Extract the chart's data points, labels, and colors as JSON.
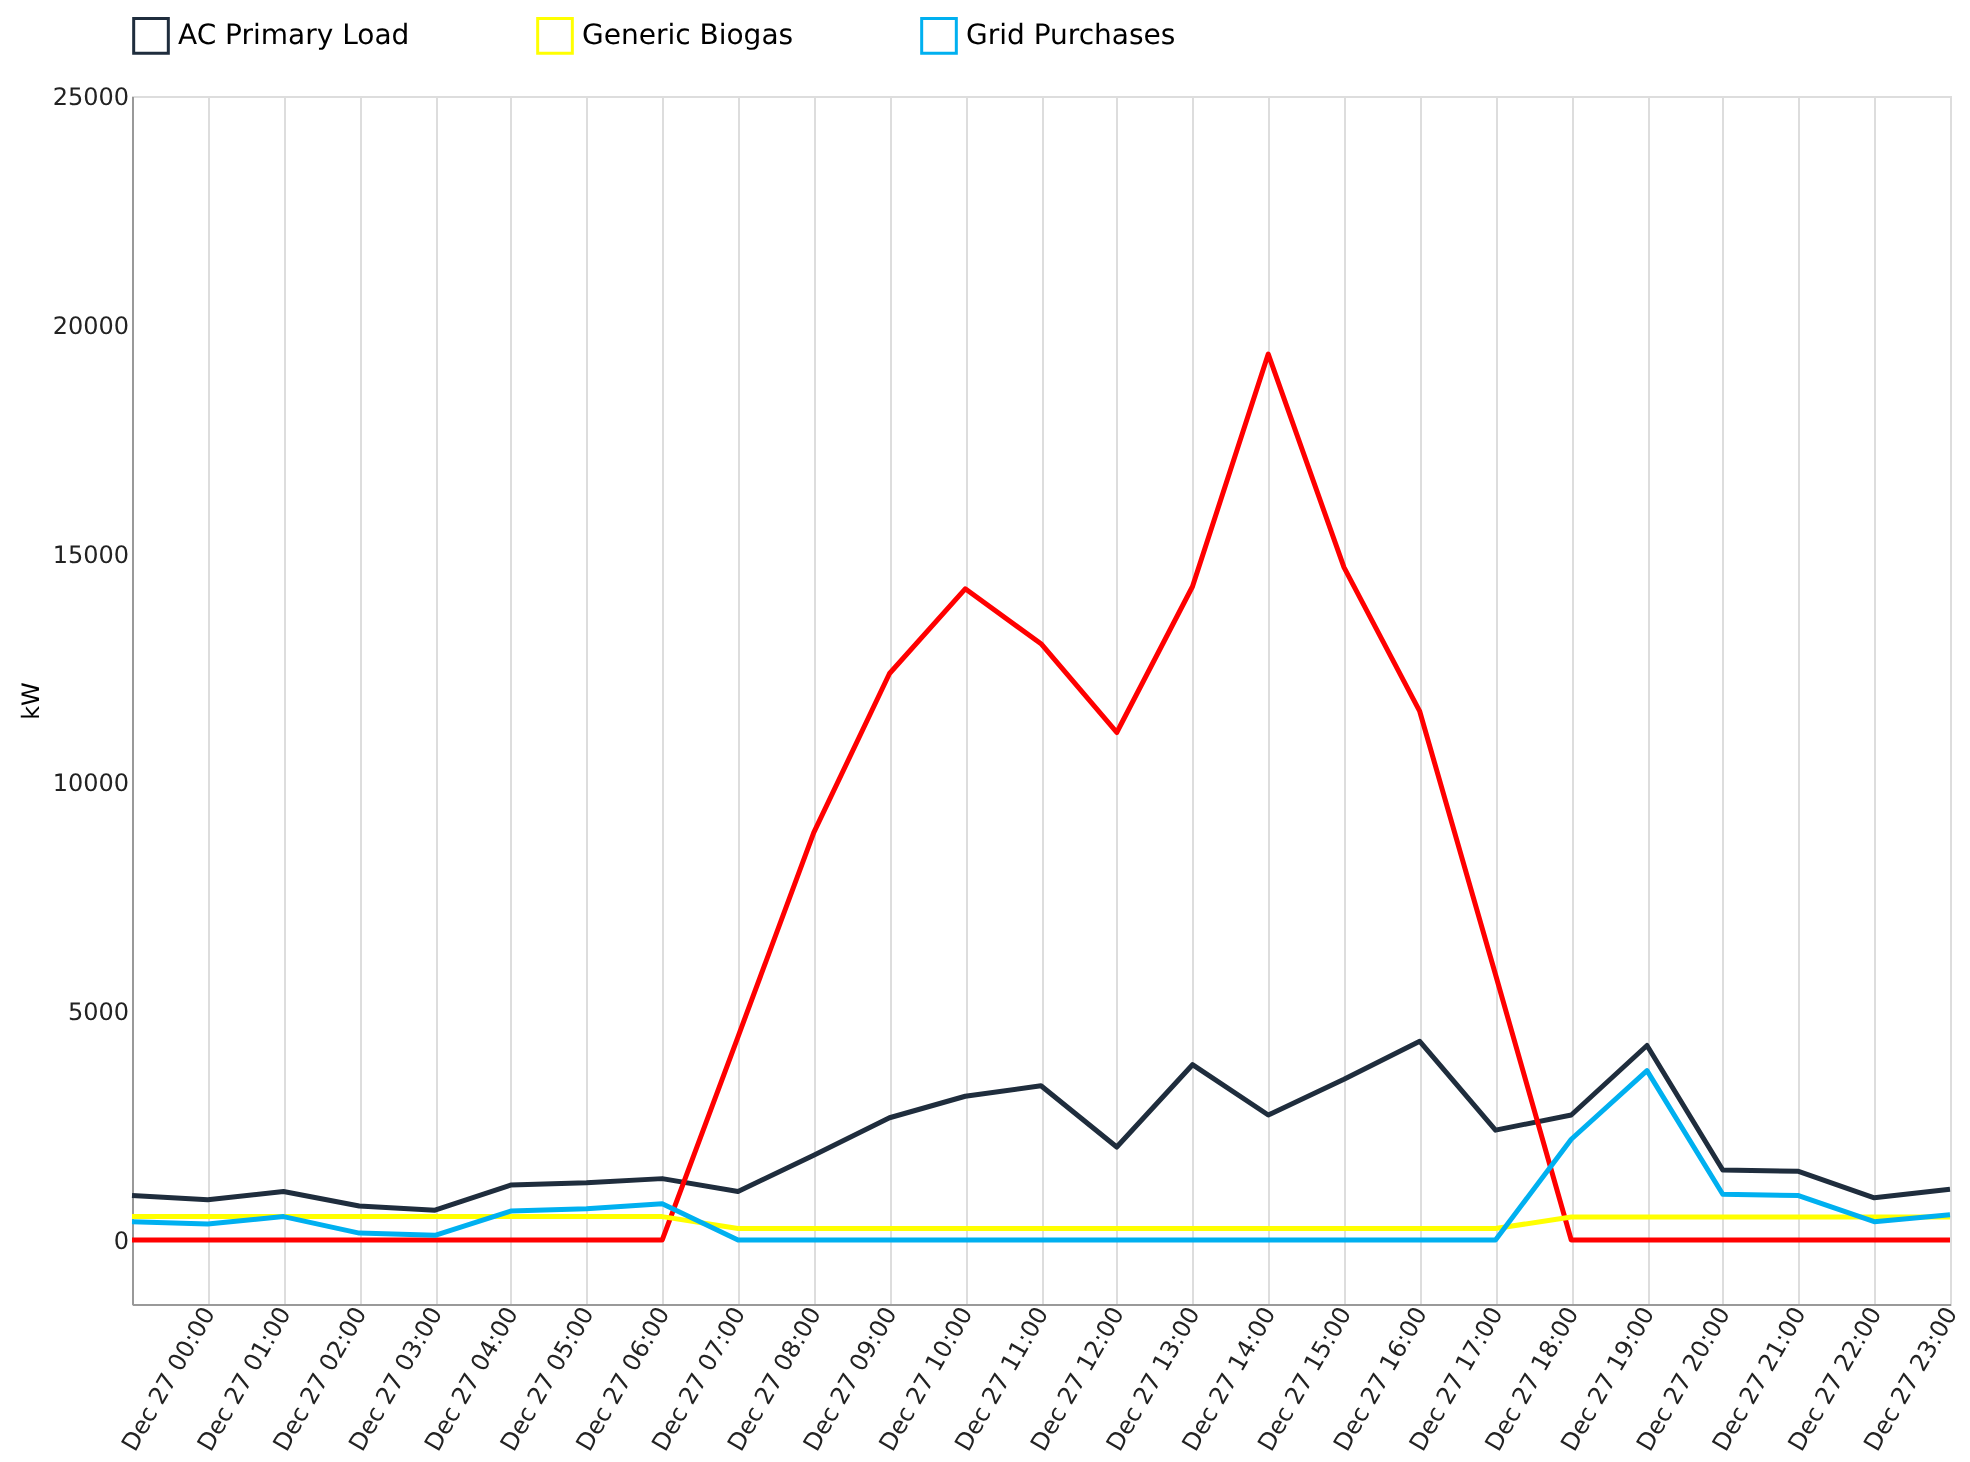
{
  "chart_data": {
    "type": "line",
    "ylabel": "kW",
    "categories": [
      null,
      "Dec 27 00:00",
      "Dec 27 01:00",
      "Dec 27 02:00",
      "Dec 27 03:00",
      "Dec 27 04:00",
      "Dec 27 05:00",
      "Dec 27 06:00",
      "Dec 27 07:00",
      "Dec 27 08:00",
      "Dec 27 09:00",
      "Dec 27 10:00",
      "Dec 27 11:00",
      "Dec 27 12:00",
      "Dec 27 13:00",
      "Dec 27 14:00",
      "Dec 27 15:00",
      "Dec 27 16:00",
      "Dec 27 17:00",
      "Dec 27 18:00",
      "Dec 27 19:00",
      "Dec 27 20:00",
      "Dec 27 21:00",
      "Dec 27 22:00",
      "Dec 27 23:00"
    ],
    "ylim": [
      -1400,
      25000
    ],
    "yticks": [
      0,
      5000,
      10000,
      15000,
      20000,
      25000
    ],
    "grid": "x",
    "legend": "top",
    "marker": "none",
    "line_style": "solid",
    "series": [
      {
        "name": "AC Primary Load",
        "color": "#1f2d3d",
        "values": [
          970,
          880,
          1060,
          740,
          650,
          1200,
          1250,
          1340,
          1060,
          1850,
          2670,
          3140,
          3370,
          2030,
          3830,
          2730,
          3510,
          4340,
          2400,
          2730,
          4250,
          1530,
          1500,
          920,
          1110
        ]
      },
      {
        "color": "#ff0000",
        "values": [
          0,
          0,
          0,
          0,
          0,
          0,
          0,
          0,
          4440,
          8900,
          12380,
          14230,
          13030,
          11090,
          14280,
          19360,
          14700,
          11550,
          5800,
          0,
          0,
          0,
          0,
          0,
          0
        ]
      },
      {
        "name": "Generic Biogas",
        "color": "#ffff00",
        "values": [
          510,
          510,
          510,
          510,
          510,
          510,
          510,
          510,
          250,
          250,
          250,
          250,
          250,
          250,
          250,
          250,
          250,
          250,
          250,
          500,
          500,
          500,
          500,
          500,
          500
        ]
      },
      {
        "name": "Grid Purchases",
        "color": "#00b0f0",
        "values": [
          400,
          350,
          510,
          150,
          100,
          630,
          680,
          790,
          0,
          0,
          0,
          0,
          0,
          0,
          0,
          0,
          0,
          0,
          0,
          2200,
          3700,
          1000,
          970,
          400,
          550
        ]
      }
    ]
  }
}
